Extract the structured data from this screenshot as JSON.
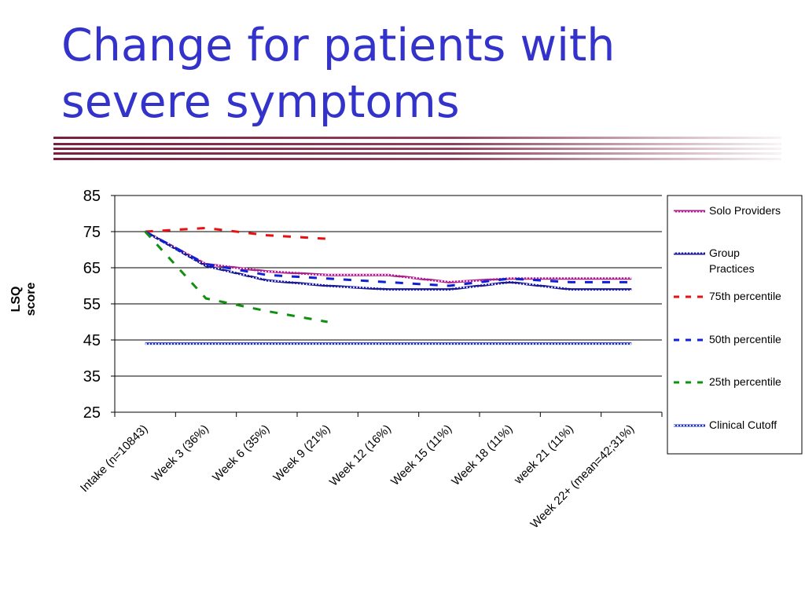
{
  "slide": {
    "title_lines": [
      "Change for patients with",
      "severe symptoms"
    ]
  },
  "colors": {
    "title": "#3333cc",
    "divider": "#7a2040",
    "solo_providers": "#b0208c",
    "group_practices": "#1a1a9a",
    "p75": "#e81010",
    "p50": "#1020d8",
    "p25": "#109010",
    "clinical_cutoff": "#2233bb"
  },
  "chart_data": {
    "type": "line",
    "title": "",
    "xlabel": "",
    "ylabel": "LSQ score",
    "ylabel_lines": [
      "LSQ",
      "score"
    ],
    "ylim": [
      25,
      85
    ],
    "yticks": [
      25,
      35,
      45,
      55,
      65,
      75,
      85
    ],
    "grid": "horizontal",
    "legend": "right",
    "categories": [
      "Intake (n=10843)",
      "Week 3 (36%)",
      "Week 6 (35%)",
      "Week 9 (21%)",
      "Week 12 (16%)",
      "Week 15 (11%)",
      "Week 18 (11%)",
      "week 21 (11%)",
      "Week 22+ (mean=42;31%)"
    ],
    "series": [
      {
        "name": "Solo Providers",
        "legend_lines": [
          "Solo Providers"
        ],
        "style": "textured",
        "color": "#b0208c",
        "values": [
          75,
          66,
          64,
          63,
          63,
          61,
          62,
          62,
          62
        ]
      },
      {
        "name": "Group Practices",
        "legend_lines": [
          "Group",
          "Practices"
        ],
        "style": "textured",
        "color": "#1a1a9a",
        "values": [
          75,
          65.5,
          61.5,
          60,
          59,
          59,
          61,
          59,
          59
        ]
      },
      {
        "name": "75th percentile",
        "legend_lines": [
          "75th percentile"
        ],
        "style": "dashed",
        "color": "#e81010",
        "values": [
          75,
          76,
          74,
          73,
          null,
          null,
          null,
          null,
          null
        ]
      },
      {
        "name": "50th percentile",
        "legend_lines": [
          "50th percentile"
        ],
        "style": "dashed",
        "color": "#1020d8",
        "values": [
          75,
          66,
          63,
          62,
          61,
          60,
          62,
          61,
          61
        ]
      },
      {
        "name": "25th percentile",
        "legend_lines": [
          "25th percentile"
        ],
        "style": "dashed",
        "color": "#109010",
        "values": [
          75,
          56.5,
          53,
          50,
          null,
          null,
          null,
          null,
          null
        ]
      },
      {
        "name": "Clinical Cutoff",
        "legend_lines": [
          "Clinical Cutoff"
        ],
        "style": "textured",
        "color": "#2233bb",
        "values": [
          44,
          44,
          44,
          44,
          44,
          44,
          44,
          44,
          44
        ]
      }
    ]
  }
}
